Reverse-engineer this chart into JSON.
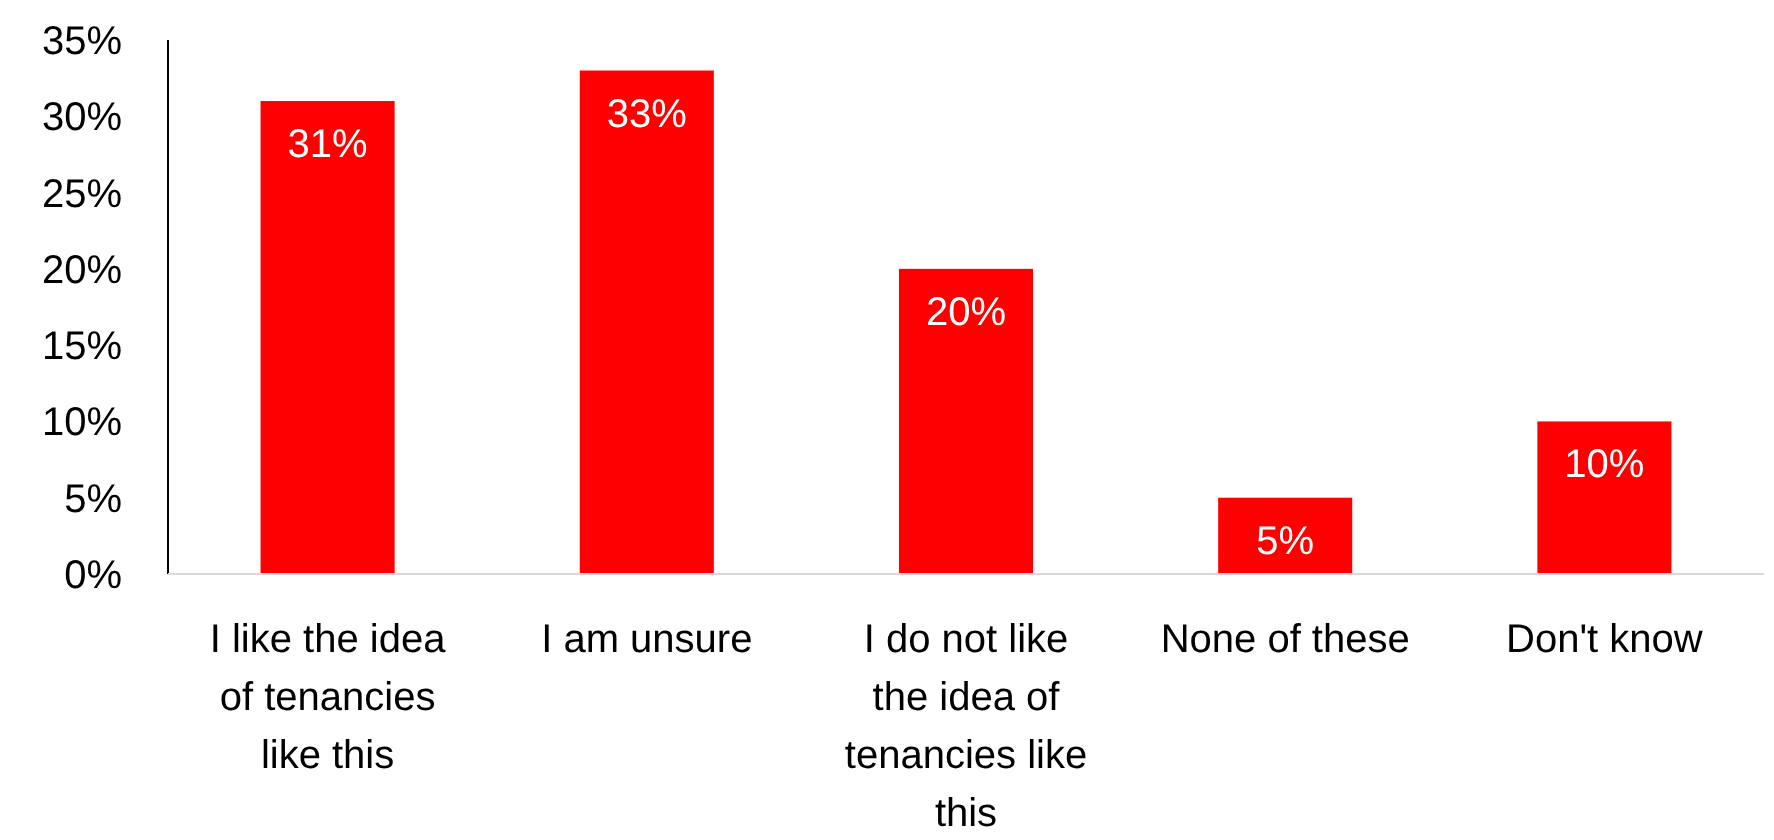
{
  "chart_data": {
    "type": "bar",
    "categories": [
      "I like the idea of tenancies like this",
      "I am unsure",
      "I do not like the idea of tenancies like this",
      "None of these",
      "Don't know"
    ],
    "values": [
      31,
      33,
      20,
      5,
      10
    ],
    "color": "#ff0000",
    "ylim": [
      0,
      35
    ],
    "yticks": [
      {
        "value": 0,
        "label": "0%"
      },
      {
        "value": 5,
        "label": "5%"
      },
      {
        "value": 10,
        "label": "10%"
      },
      {
        "value": 15,
        "label": "15%"
      },
      {
        "value": 20,
        "label": "20%"
      },
      {
        "value": 25,
        "label": "25%"
      },
      {
        "value": 30,
        "label": "30%"
      },
      {
        "value": 35,
        "label": "35%"
      }
    ],
    "grid": false,
    "value_labels": [
      "31%",
      "33%",
      "20%",
      "5%",
      "10%"
    ]
  }
}
